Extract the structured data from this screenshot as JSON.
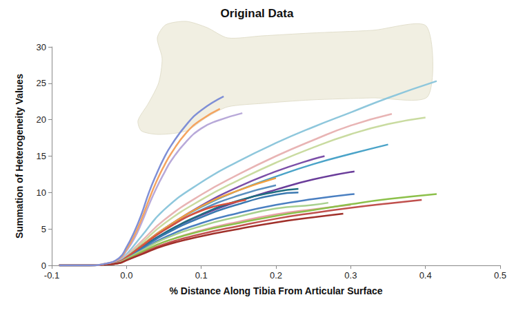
{
  "chart_data": {
    "type": "line",
    "title": "Original Data",
    "x_label": "% Distance Along Tibia From Articular Surface",
    "y_label": "Summation of Heterogeneity Values",
    "xlim": [
      -0.1,
      0.5
    ],
    "xticks": [
      -0.1,
      {
        "value": 0,
        "label": "0.0"
      },
      0.1,
      0.2,
      0.3,
      0.4,
      0.5
    ],
    "ylim": [
      0,
      30
    ],
    "yticks": [
      0,
      5,
      10,
      15,
      20,
      25,
      30
    ],
    "grid": false,
    "marker": "none",
    "series": [
      {
        "color": "#8ec7dc",
        "x": [
          -0.09,
          -0.05,
          -0.03,
          -0.01,
          0,
          0.02,
          0.05,
          0.1,
          0.15,
          0.2,
          0.25,
          0.3,
          0.35,
          0.415
        ],
        "values": [
          0,
          0,
          0.1,
          0.6,
          1.5,
          4,
          7.6,
          11.4,
          14.3,
          16.8,
          19,
          21,
          23,
          25.3
        ]
      },
      {
        "color": "#e8b4b4",
        "x": [
          -0.09,
          -0.05,
          -0.03,
          -0.01,
          0,
          0.02,
          0.05,
          0.1,
          0.15,
          0.2,
          0.25,
          0.3,
          0.355
        ],
        "values": [
          0,
          0,
          0.1,
          0.5,
          1.3,
          3.3,
          6.2,
          9.7,
          12.5,
          15,
          17.2,
          19.2,
          20.8
        ]
      },
      {
        "color": "#c9dba0",
        "x": [
          -0.09,
          -0.05,
          -0.03,
          -0.01,
          0,
          0.02,
          0.05,
          0.1,
          0.15,
          0.2,
          0.25,
          0.3,
          0.35,
          0.4
        ],
        "values": [
          0,
          0,
          0.1,
          0.5,
          1.2,
          3,
          5.7,
          9,
          11.7,
          14.1,
          16.2,
          18,
          19.4,
          20.3
        ]
      },
      {
        "color": "#4aa3c8",
        "x": [
          -0.09,
          -0.05,
          -0.03,
          -0.01,
          0,
          0.02,
          0.05,
          0.1,
          0.15,
          0.2,
          0.25,
          0.3,
          0.35
        ],
        "values": [
          0,
          0,
          0.1,
          0.5,
          1.1,
          2.7,
          5,
          8,
          10.3,
          12.2,
          13.9,
          15.3,
          16.6
        ]
      },
      {
        "color": "#7b4fa8",
        "x": [
          -0.09,
          -0.05,
          -0.03,
          -0.01,
          0,
          0.02,
          0.05,
          0.1,
          0.15,
          0.2,
          0.25,
          0.265
        ],
        "values": [
          0,
          0,
          0.1,
          0.5,
          1.1,
          2.7,
          5,
          8.2,
          10.8,
          12.9,
          14.6,
          15
        ]
      },
      {
        "color": "#6a3d9a",
        "x": [
          -0.09,
          -0.05,
          -0.03,
          -0.01,
          0,
          0.02,
          0.05,
          0.1,
          0.15,
          0.2,
          0.25,
          0.305
        ],
        "values": [
          0,
          0,
          0.1,
          0.4,
          1,
          2.4,
          4.4,
          6.9,
          8.8,
          10.4,
          11.8,
          12.9
        ]
      },
      {
        "color": "#f0a040",
        "x": [
          -0.09,
          -0.05,
          -0.03,
          -0.01,
          0,
          0.02,
          0.05,
          0.1,
          0.15,
          0.2
        ],
        "values": [
          0,
          0,
          0.1,
          0.5,
          1.1,
          2.7,
          5,
          8.1,
          10.3,
          12
        ]
      },
      {
        "color": "#5a8fbf",
        "x": [
          -0.09,
          -0.05,
          -0.03,
          -0.01,
          0,
          0.02,
          0.05,
          0.1,
          0.15,
          0.2
        ],
        "values": [
          0,
          0,
          0.1,
          0.5,
          1.1,
          2.6,
          4.8,
          7.6,
          9.6,
          11
        ]
      },
      {
        "color": "#1f6e80",
        "x": [
          -0.09,
          -0.05,
          -0.03,
          -0.01,
          0,
          0.02,
          0.05,
          0.1,
          0.15,
          0.2,
          0.23
        ],
        "values": [
          0,
          0,
          0.1,
          0.4,
          1,
          2.4,
          4.4,
          7,
          8.9,
          10.1,
          10.5
        ]
      },
      {
        "color": "#3a78b0",
        "x": [
          -0.09,
          -0.05,
          -0.03,
          -0.01,
          0,
          0.02,
          0.05,
          0.1,
          0.15,
          0.2,
          0.23
        ],
        "values": [
          0,
          0,
          0.1,
          0.4,
          1,
          2.3,
          4.2,
          6.6,
          8.4,
          9.7,
          10
        ]
      },
      {
        "color": "#d9503c",
        "x": [
          -0.09,
          -0.05,
          -0.03,
          -0.01,
          0,
          0.02,
          0.05,
          0.1,
          0.15,
          0.16
        ],
        "values": [
          0,
          0,
          0.1,
          0.5,
          1.1,
          2.6,
          4.8,
          7.5,
          8.8,
          9
        ]
      },
      {
        "color": "#4a7fc1",
        "x": [
          -0.09,
          -0.05,
          -0.03,
          -0.01,
          0,
          0.02,
          0.05,
          0.1,
          0.15,
          0.2,
          0.25,
          0.305
        ],
        "values": [
          0,
          0,
          0.1,
          0.4,
          0.9,
          2.1,
          3.8,
          5.8,
          7.2,
          8.3,
          9.1,
          9.8
        ]
      },
      {
        "color": "#a8d08d",
        "x": [
          -0.09,
          -0.05,
          -0.03,
          -0.01,
          0,
          0.02,
          0.05,
          0.1,
          0.15,
          0.2,
          0.25,
          0.27
        ],
        "values": [
          0,
          0,
          0.1,
          0.4,
          0.9,
          2,
          3.6,
          5.4,
          6.7,
          7.8,
          8.3,
          8.6
        ]
      },
      {
        "color": "#e8a0a8",
        "x": [
          -0.09,
          -0.05,
          -0.03,
          -0.01,
          0,
          0.02,
          0.05,
          0.1,
          0.15,
          0.2,
          0.25,
          0.3
        ],
        "values": [
          0,
          0,
          0.1,
          0.3,
          0.8,
          1.8,
          3.2,
          4.8,
          6,
          7,
          7.7,
          8.3
        ]
      },
      {
        "color": "#8cc04a",
        "x": [
          -0.09,
          -0.05,
          -0.03,
          -0.01,
          0,
          0.02,
          0.05,
          0.1,
          0.15,
          0.2,
          0.25,
          0.3,
          0.35,
          0.415
        ],
        "values": [
          0,
          0,
          0.1,
          0.3,
          0.8,
          1.8,
          3.2,
          4.7,
          5.8,
          6.8,
          7.6,
          8.4,
          9.1,
          9.8
        ]
      },
      {
        "color": "#c0504d",
        "x": [
          -0.09,
          -0.05,
          -0.03,
          -0.01,
          0,
          0.02,
          0.05,
          0.1,
          0.15,
          0.2,
          0.25,
          0.3,
          0.35,
          0.395
        ],
        "values": [
          0,
          0,
          0.1,
          0.3,
          0.7,
          1.6,
          2.9,
          4.3,
          5.4,
          6.4,
          7.2,
          7.9,
          8.5,
          9
        ]
      },
      {
        "color": "#a0302a",
        "x": [
          -0.09,
          -0.05,
          -0.03,
          -0.01,
          0,
          0.02,
          0.05,
          0.1,
          0.15,
          0.2,
          0.25,
          0.29
        ],
        "values": [
          0,
          0,
          0.1,
          0.3,
          0.7,
          1.5,
          2.7,
          4,
          5,
          5.9,
          6.6,
          7.1
        ]
      },
      {
        "color": "#b8a9d9",
        "x": [
          -0.09,
          -0.05,
          -0.03,
          -0.01,
          0,
          0.01,
          0.02,
          0.03,
          0.04,
          0.05,
          0.06,
          0.08,
          0.1,
          0.12,
          0.155
        ],
        "values": [
          0,
          0,
          0.2,
          0.8,
          2,
          3.6,
          5.8,
          8.3,
          10.6,
          12.6,
          14.4,
          17,
          18.8,
          19.8,
          20.9
        ]
      },
      {
        "color": "#f4a460",
        "x": [
          -0.09,
          -0.05,
          -0.03,
          -0.01,
          0,
          0.01,
          0.02,
          0.03,
          0.04,
          0.05,
          0.06,
          0.08,
          0.1,
          0.125
        ],
        "values": [
          0,
          0,
          0.2,
          0.9,
          2.2,
          4,
          6.3,
          9,
          11.5,
          13.6,
          15.4,
          18.2,
          20,
          21.5
        ]
      },
      {
        "color": "#7f8fd6",
        "x": [
          -0.09,
          -0.05,
          -0.03,
          -0.01,
          0,
          0.01,
          0.02,
          0.03,
          0.04,
          0.05,
          0.06,
          0.08,
          0.1,
          0.13
        ],
        "values": [
          0,
          0,
          0.2,
          1,
          2.5,
          4.5,
          7,
          10,
          12.5,
          14.7,
          16.5,
          19.3,
          21.3,
          23.2
        ]
      }
    ]
  }
}
